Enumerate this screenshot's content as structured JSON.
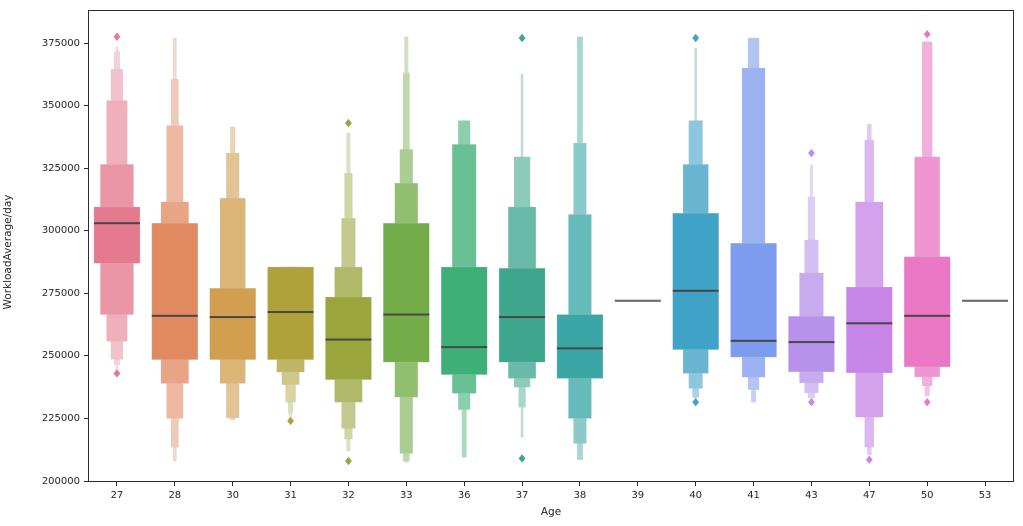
{
  "figure": {
    "background": "#ffffff",
    "frame_color": "#2b2b2b",
    "tick_color": "#2b2b2b",
    "text_color": "#262626"
  },
  "chart_data": {
    "type": "boxen",
    "title": "",
    "xlabel": "Age",
    "ylabel": "WorkloadAverage/day",
    "legend": "none",
    "grid": false,
    "x_categories": [
      "27",
      "28",
      "30",
      "31",
      "32",
      "33",
      "36",
      "37",
      "38",
      "39",
      "40",
      "41",
      "43",
      "47",
      "50",
      "53"
    ],
    "y_ticks": [
      200000,
      225000,
      250000,
      275000,
      300000,
      325000,
      350000,
      375000
    ],
    "y_tick_labels": [
      "200000",
      "225000",
      "250000",
      "275000",
      "300000",
      "325000",
      "350000",
      "375000"
    ],
    "y_axis_range": [
      199500,
      388200
    ],
    "median_line_color": "#474747",
    "single_value_line_color": "#6e6e6e",
    "box_edge_color": "#c8c8c8",
    "groups": [
      {
        "age": "27",
        "color": "#e5798e",
        "median": 303000,
        "levels": [
          {
            "lo": 287000,
            "hi": 309500,
            "w": 1.0
          },
          {
            "lo": 266500,
            "hi": 326500,
            "w": 0.72
          },
          {
            "lo": 255800,
            "hi": 352000,
            "w": 0.45
          },
          {
            "lo": 248600,
            "hi": 364500,
            "w": 0.26
          },
          {
            "lo": 246500,
            "hi": 371500,
            "w": 0.12
          },
          {
            "lo": 244500,
            "hi": 373500,
            "w": 0.05
          }
        ],
        "outliers": [
          377500,
          243000
        ]
      },
      {
        "age": "28",
        "color": "#e18a62",
        "median": 266000,
        "levels": [
          {
            "lo": 248500,
            "hi": 303000,
            "w": 1.0
          },
          {
            "lo": 239000,
            "hi": 311500,
            "w": 0.6
          },
          {
            "lo": 225000,
            "hi": 342000,
            "w": 0.36
          },
          {
            "lo": 213500,
            "hi": 360500,
            "w": 0.16
          },
          {
            "lo": 208000,
            "hi": 377000,
            "w": 0.07
          }
        ],
        "outliers": []
      },
      {
        "age": "30",
        "color": "#d19f4f",
        "median": 265500,
        "levels": [
          {
            "lo": 248500,
            "hi": 277000,
            "w": 1.0
          },
          {
            "lo": 239000,
            "hi": 313000,
            "w": 0.55
          },
          {
            "lo": 225200,
            "hi": 331000,
            "w": 0.28
          },
          {
            "lo": 224500,
            "hi": 341500,
            "w": 0.1
          }
        ],
        "outliers": []
      },
      {
        "age": "31",
        "color": "#afa23b",
        "median": 267500,
        "levels": [
          {
            "lo": 248500,
            "hi": 285500,
            "w": 1.0
          },
          {
            "lo": 243500,
            "hi": 285500,
            "w": 0.6
          },
          {
            "lo": 238500,
            "hi": 285500,
            "w": 0.38
          },
          {
            "lo": 231500,
            "hi": 285500,
            "w": 0.22
          },
          {
            "lo": 227000,
            "hi": 285500,
            "w": 0.1
          },
          {
            "lo": 225500,
            "hi": 285500,
            "w": 0.05
          }
        ],
        "outliers": [
          224000
        ]
      },
      {
        "age": "32",
        "color": "#9aa53c",
        "median": 256500,
        "levels": [
          {
            "lo": 240500,
            "hi": 273500,
            "w": 1.0
          },
          {
            "lo": 231500,
            "hi": 285500,
            "w": 0.6
          },
          {
            "lo": 221000,
            "hi": 305000,
            "w": 0.3
          },
          {
            "lo": 216800,
            "hi": 323000,
            "w": 0.17
          },
          {
            "lo": 212000,
            "hi": 339000,
            "w": 0.08
          }
        ],
        "outliers": [
          343000,
          208000
        ]
      },
      {
        "age": "33",
        "color": "#72ad47",
        "median": 266500,
        "levels": [
          {
            "lo": 247500,
            "hi": 303000,
            "w": 1.0
          },
          {
            "lo": 233500,
            "hi": 319000,
            "w": 0.5
          },
          {
            "lo": 211000,
            "hi": 332500,
            "w": 0.28
          },
          {
            "lo": 208000,
            "hi": 363000,
            "w": 0.14
          },
          {
            "lo": 207500,
            "hi": 377500,
            "w": 0.08
          }
        ],
        "outliers": []
      },
      {
        "age": "36",
        "color": "#3eb077",
        "median": 253500,
        "levels": [
          {
            "lo": 242500,
            "hi": 285500,
            "w": 1.0
          },
          {
            "lo": 235000,
            "hi": 334500,
            "w": 0.52
          },
          {
            "lo": 228500,
            "hi": 344000,
            "w": 0.26
          },
          {
            "lo": 209500,
            "hi": 344000,
            "w": 0.1
          }
        ],
        "outliers": []
      },
      {
        "age": "37",
        "color": "#3fa68e",
        "median": 265500,
        "levels": [
          {
            "lo": 247500,
            "hi": 285000,
            "w": 1.0
          },
          {
            "lo": 241000,
            "hi": 309500,
            "w": 0.6
          },
          {
            "lo": 237500,
            "hi": 329500,
            "w": 0.35
          },
          {
            "lo": 229500,
            "hi": 329500,
            "w": 0.15
          },
          {
            "lo": 217500,
            "hi": 362500,
            "w": 0.05
          }
        ],
        "outliers": [
          377000,
          209000
        ]
      },
      {
        "age": "38",
        "color": "#3aa7a6",
        "median": 253000,
        "levels": [
          {
            "lo": 241000,
            "hi": 266500,
            "w": 1.0
          },
          {
            "lo": 225000,
            "hi": 306500,
            "w": 0.5
          },
          {
            "lo": 215000,
            "hi": 335000,
            "w": 0.28
          },
          {
            "lo": 208500,
            "hi": 377500,
            "w": 0.12
          }
        ],
        "outliers": []
      },
      {
        "age": "39",
        "color": "#6e6e6e",
        "median": 272000,
        "single_value": true,
        "levels": [],
        "outliers": []
      },
      {
        "age": "40",
        "color": "#3fa2c7",
        "median": 276000,
        "levels": [
          {
            "lo": 252500,
            "hi": 307000,
            "w": 1.0
          },
          {
            "lo": 243000,
            "hi": 326500,
            "w": 0.55
          },
          {
            "lo": 237000,
            "hi": 344000,
            "w": 0.3
          },
          {
            "lo": 233500,
            "hi": 344000,
            "w": 0.14
          },
          {
            "lo": 233000,
            "hi": 373000,
            "w": 0.05
          }
        ],
        "outliers": [
          377000,
          231500
        ]
      },
      {
        "age": "41",
        "color": "#7d9ced",
        "median": 256000,
        "levels": [
          {
            "lo": 249500,
            "hi": 295000,
            "w": 1.0
          },
          {
            "lo": 241500,
            "hi": 365000,
            "w": 0.5
          },
          {
            "lo": 236500,
            "hi": 377000,
            "w": 0.24
          },
          {
            "lo": 231500,
            "hi": 377000,
            "w": 0.1
          }
        ],
        "outliers": []
      },
      {
        "age": "43",
        "color": "#b892ea",
        "median": 255500,
        "levels": [
          {
            "lo": 243600,
            "hi": 265800,
            "w": 1.0
          },
          {
            "lo": 239200,
            "hi": 283100,
            "w": 0.52
          },
          {
            "lo": 235200,
            "hi": 296300,
            "w": 0.3
          },
          {
            "lo": 233200,
            "hi": 313500,
            "w": 0.15
          },
          {
            "lo": 232500,
            "hi": 326300,
            "w": 0.06
          }
        ],
        "outliers": [
          331000,
          231500
        ]
      },
      {
        "age": "47",
        "color": "#c886e8",
        "median": 263000,
        "levels": [
          {
            "lo": 243200,
            "hi": 277500,
            "w": 1.0
          },
          {
            "lo": 225500,
            "hi": 311500,
            "w": 0.6
          },
          {
            "lo": 213500,
            "hi": 336200,
            "w": 0.2
          },
          {
            "lo": 210500,
            "hi": 342500,
            "w": 0.09
          }
        ],
        "outliers": [
          208500
        ]
      },
      {
        "age": "50",
        "color": "#ea78c5",
        "median": 266000,
        "levels": [
          {
            "lo": 245600,
            "hi": 289600,
            "w": 1.0
          },
          {
            "lo": 241600,
            "hi": 329500,
            "w": 0.55
          },
          {
            "lo": 238000,
            "hi": 375500,
            "w": 0.22
          },
          {
            "lo": 234000,
            "hi": 375500,
            "w": 0.1
          }
        ],
        "outliers": [
          378500,
          231500
        ]
      },
      {
        "age": "53",
        "color": "#6e6e6e",
        "median": 272000,
        "single_value": true,
        "levels": [],
        "outliers": []
      }
    ]
  }
}
